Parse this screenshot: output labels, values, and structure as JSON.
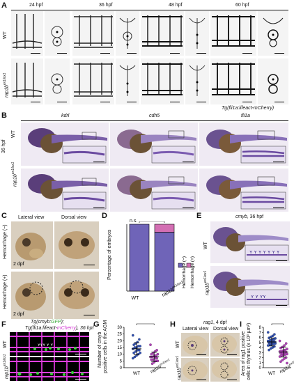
{
  "panels": {
    "A": {
      "label": "A",
      "timepoints": [
        "24 hpf",
        "36 hpf",
        "48 hpf",
        "60 hpf"
      ],
      "rows": [
        "WT",
        "rap1b"
      ],
      "mutant_sup": "ex1/ex1",
      "transgene": "Tg(fli1a:lifeact-mCherry)"
    },
    "B": {
      "label": "B",
      "genes": [
        "kdrl",
        "cdh5",
        "fli1a"
      ],
      "stage": "36 hpf",
      "rows": [
        "WT",
        "rap1b"
      ],
      "mutant_sup": "ex1/ex1"
    },
    "C": {
      "label": "C",
      "views": [
        "Lateral view",
        "Dorsal view"
      ],
      "rows": [
        "Hemorrhage (−)",
        "Hemorrhage (+)"
      ],
      "stamp": "2 dpf"
    },
    "D": {
      "label": "D",
      "significance": "n.s.",
      "ylabel": "Percentage of embryos",
      "legend": [
        "Hemorrhage (−)",
        "Hemorrhage (+)"
      ],
      "colors": {
        "neg": "#6f64b8",
        "pos": "#d36fb3"
      }
    },
    "E": {
      "label": "E",
      "title_gene": "cmyb",
      "title_stage": ", 36 hpf",
      "rows": [
        "WT",
        "rap1b"
      ],
      "mutant_sup": "ex1/ex1"
    },
    "F": {
      "label": "F",
      "title_l1a": "Tg(cmyb:",
      "title_l1b": "GFP",
      "title_l1c": ");",
      "title_l2a": "Tg(fli1a:lifeact-",
      "title_l2b": "mCherry",
      "title_l2c": "), 36 hpf",
      "rows": [
        "WT",
        "rap1b"
      ],
      "mutant_sup": "ex1/ex1",
      "colors": {
        "green": "#3ccf3c",
        "magenta": "#e040e0"
      }
    },
    "G": {
      "label": "G",
      "significance": "**",
      "ylabel_l1": "Number of cmyb",
      "ylabel_l2": "positive cells in the AGM",
      "yticks": [
        "0",
        "5",
        "10",
        "15",
        "20",
        "25",
        "30"
      ],
      "xcats": [
        "WT",
        "rap1b"
      ],
      "mutant_sup": "ex1/ex1"
    },
    "H": {
      "label": "H",
      "title_gene": "rag1",
      "title_stage": ", 4 dpf",
      "views": [
        "Lateral view",
        "Dorsal view"
      ],
      "rows": [
        "WT",
        "rap1b"
      ],
      "mutant_sup": "ex1/ex1"
    },
    "I": {
      "label": "I",
      "significance": "***",
      "ylabel_l1": "Area of rag1 positive",
      "ylabel_l2": "cells in thymus (x 10³ µm²)",
      "yticks": [
        "0",
        "1",
        "2",
        "3",
        "4",
        "5",
        "6",
        "7",
        "8"
      ],
      "xcats": [
        "WT",
        "rap1b"
      ],
      "mutant_sup": "ex1/ex1"
    }
  },
  "chart_data": [
    {
      "type": "bar",
      "panel": "D",
      "categories": [
        "WT",
        "rap1b ex1/ex1"
      ],
      "series": [
        {
          "name": "Hemorrhage (−)",
          "values": [
            100,
            88
          ]
        },
        {
          "name": "Hemorrhage (+)",
          "values": [
            0,
            12
          ]
        }
      ],
      "ylabel": "Percentage of embryos",
      "annotation": "n.s.",
      "stacked": true,
      "ylim": [
        0,
        100
      ]
    },
    {
      "type": "scatter",
      "panel": "G",
      "categories": [
        "WT",
        "rap1b ex1/ex1"
      ],
      "series": [
        {
          "name": "WT",
          "values": [
            24,
            21,
            19,
            18,
            17,
            16,
            16,
            15,
            15,
            14,
            13,
            13,
            12,
            11,
            11,
            10,
            9,
            8,
            7
          ],
          "mean": 14,
          "sd": 4.5
        },
        {
          "name": "rap1b ex1/ex1",
          "values": [
            17,
            13,
            12,
            11,
            10,
            10,
            9,
            9,
            8,
            8,
            7,
            7,
            6,
            6,
            5,
            5,
            4,
            3
          ],
          "mean": 8,
          "sd": 3.5
        }
      ],
      "ylabel": "Number of cmyb positive cells in the AGM",
      "ylim": [
        0,
        30
      ],
      "annotation": "**"
    },
    {
      "type": "scatter",
      "panel": "I",
      "categories": [
        "WT",
        "rap1b ex1/ex1"
      ],
      "series": [
        {
          "name": "WT",
          "values": [
            7.0,
            6.6,
            6.3,
            6.1,
            5.9,
            5.8,
            5.6,
            5.5,
            5.4,
            5.3,
            5.2,
            5.1,
            5.0,
            4.9,
            4.8,
            4.7,
            4.6,
            4.5,
            4.4,
            4.2,
            4.0,
            3.8,
            3.5
          ],
          "mean": 5.1,
          "sd": 0.8
        },
        {
          "name": "rap1b ex1/ex1",
          "values": [
            5.3,
            4.8,
            4.4,
            4.1,
            3.9,
            3.7,
            3.5,
            3.4,
            3.3,
            3.2,
            3.1,
            3.0,
            2.9,
            2.8,
            2.7,
            2.6,
            2.5,
            2.4,
            2.2,
            2.0,
            1.8,
            1.5,
            1.2,
            0.9
          ],
          "mean": 3.1,
          "sd": 1.0
        }
      ],
      "ylabel": "Area of rag1 positive cells in thymus (x 10³ µm²)",
      "ylim": [
        0,
        8
      ],
      "annotation": "***"
    }
  ]
}
